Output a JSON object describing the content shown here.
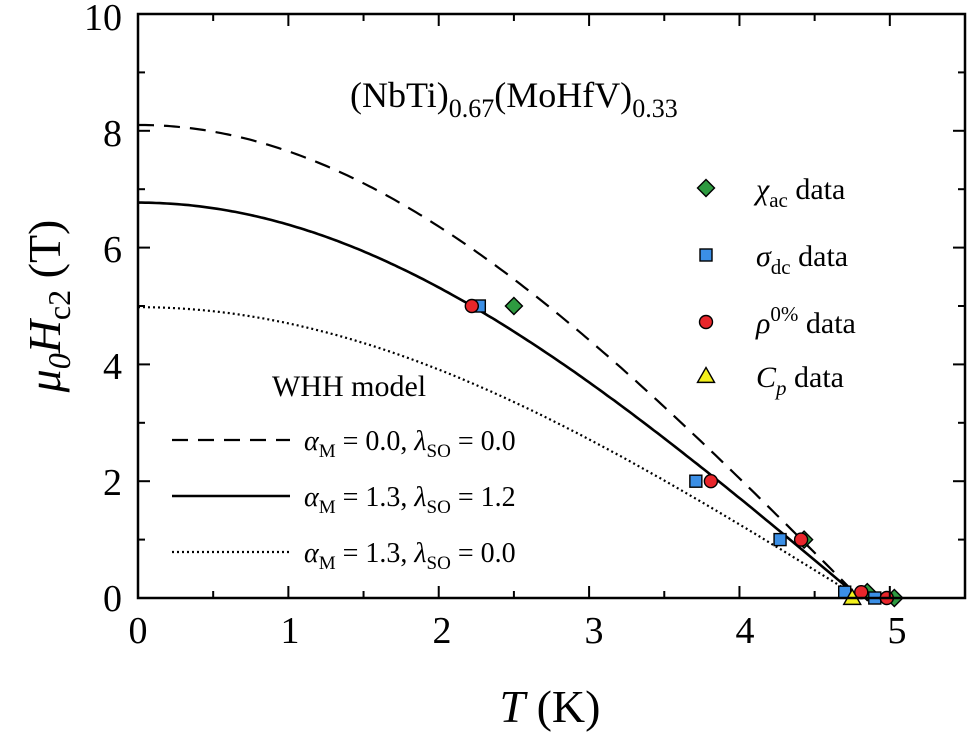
{
  "chart_data": {
    "type": "scatter",
    "title": "(NbTi)0.67(MoHfV)0.33",
    "title_parts": {
      "base1": "(NbTi)",
      "sub1": "0.67",
      "base2": "(MoHfV)",
      "sub2": "0.33"
    },
    "xlabel": {
      "sym": "T",
      "unit": " (K)"
    },
    "ylabel": {
      "sym1": "μ",
      "sub1": "0",
      "sym2": "H",
      "sub2": "c2",
      "unit": " (T)"
    },
    "xlim": [
      0,
      5.5
    ],
    "ylim": [
      0,
      10
    ],
    "x_ticks": [
      "0",
      "1",
      "2",
      "3",
      "4",
      "5"
    ],
    "y_ticks": [
      "0",
      "2",
      "4",
      "6",
      "8",
      "10"
    ],
    "grid": false,
    "legend_position": "right",
    "series": [
      {
        "name": "χac data",
        "label": {
          "sym": "χ",
          "sub": "ac",
          "rest": " data"
        },
        "marker": "diamond",
        "color": "#2e9a40",
        "points": [
          [
            2.5,
            5.0
          ],
          [
            4.43,
            1.0
          ],
          [
            4.85,
            0.1
          ],
          [
            5.03,
            0.0
          ]
        ]
      },
      {
        "name": "σdc data",
        "label": {
          "sym": "σ",
          "sub": "dc",
          "rest": " data"
        },
        "marker": "square",
        "color": "#3b8fe6",
        "points": [
          [
            2.27,
            5.0
          ],
          [
            3.71,
            2.0
          ],
          [
            4.27,
            1.0
          ],
          [
            4.7,
            0.1
          ],
          [
            4.9,
            0.0
          ]
        ]
      },
      {
        "name": "ρ0% data",
        "label": {
          "sym": "ρ",
          "sup": "0%",
          "rest": " data"
        },
        "marker": "circle",
        "color": "#e8262b",
        "points": [
          [
            2.22,
            5.0
          ],
          [
            3.81,
            2.0
          ],
          [
            4.41,
            1.0
          ],
          [
            4.81,
            0.1
          ],
          [
            4.98,
            0.0
          ]
        ]
      },
      {
        "name": "Cp data",
        "label": {
          "sym": "C",
          "sub": "p",
          "rest": " data"
        },
        "marker": "triangle",
        "color": "#f3f01c",
        "points": [
          [
            4.75,
            0.0
          ]
        ]
      }
    ],
    "models": {
      "title": "WHH model",
      "Tc": 4.8,
      "curves": [
        {
          "style": "dashed",
          "label": {
            "a": "α",
            "a_sub": "M",
            "a_val": " = 0.0, ",
            "l": "λ",
            "l_sub": "SO",
            "l_val": " = 0.0"
          },
          "H0": 8.1
        },
        {
          "style": "solid",
          "label": {
            "a": "α",
            "a_sub": "M",
            "a_val": " = 1.3, ",
            "l": "λ",
            "l_sub": "SO",
            "l_val": " = 1.2"
          },
          "H0": 6.77
        },
        {
          "style": "dotted",
          "label": {
            "a": "α",
            "a_sub": "M",
            "a_val": " = 1.3, ",
            "l": "λ",
            "l_sub": "SO",
            "l_val": " = 0.0"
          },
          "H0": 4.98
        }
      ]
    }
  }
}
